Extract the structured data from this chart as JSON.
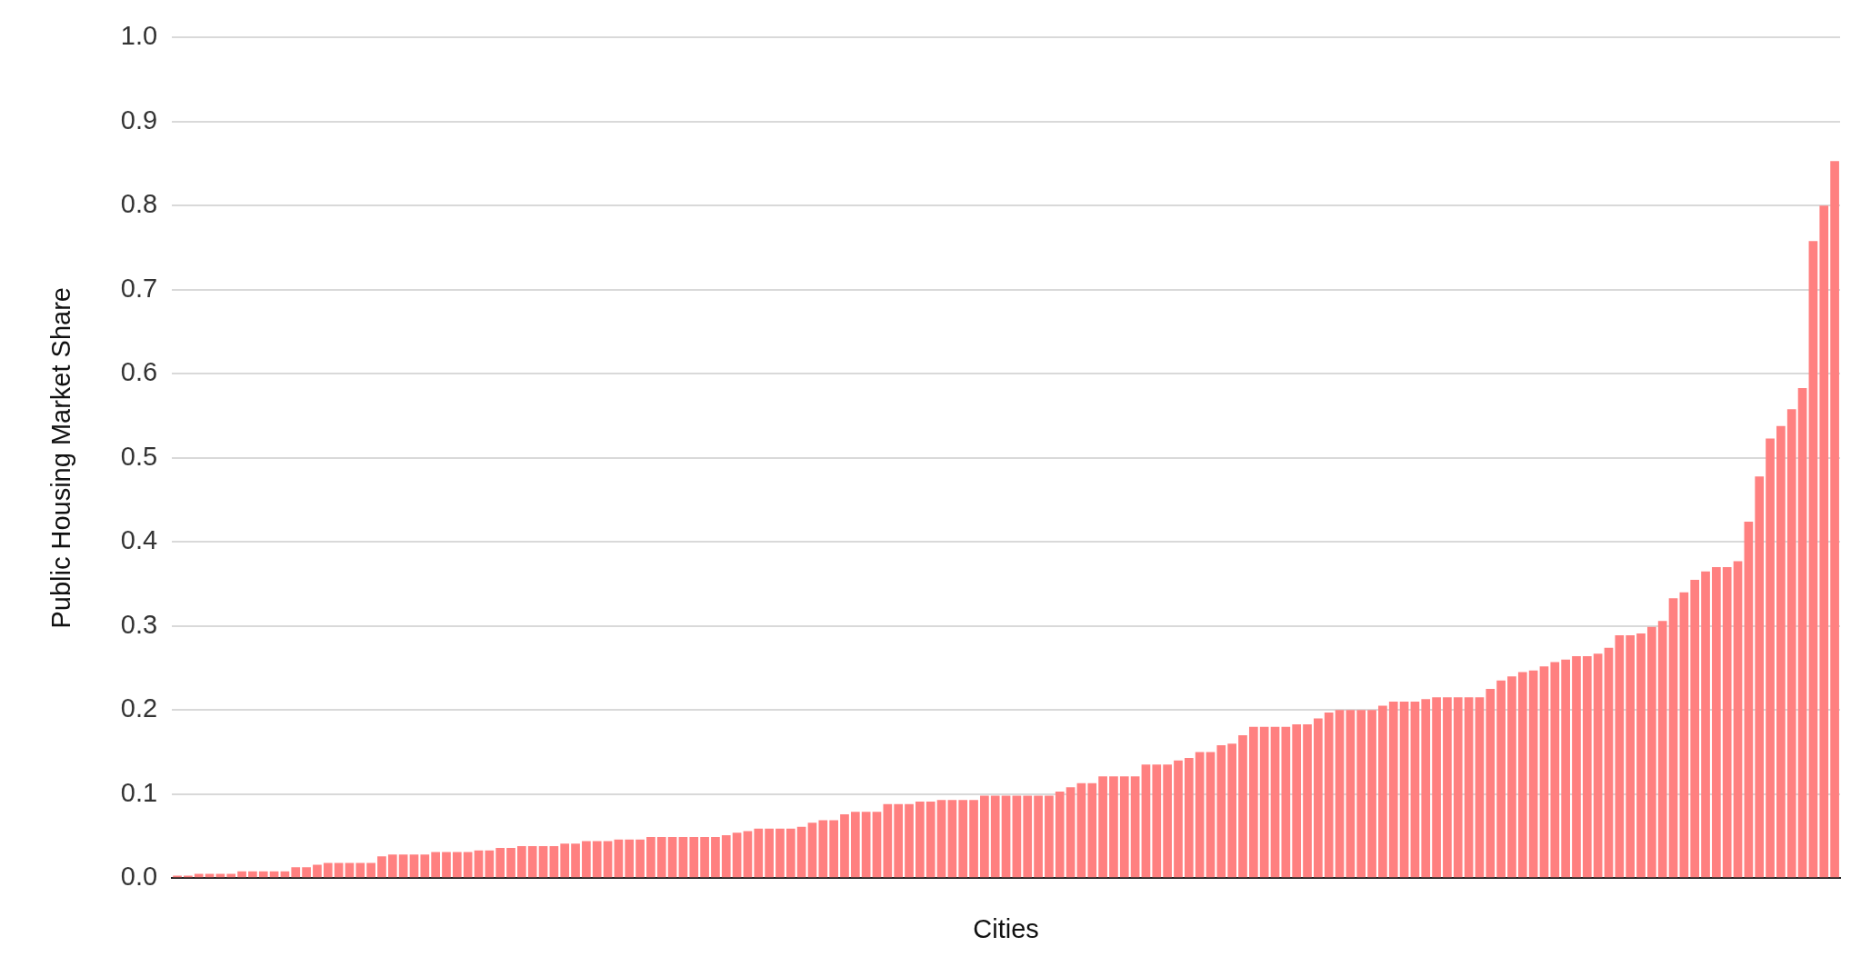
{
  "chart_data": {
    "type": "bar",
    "xlabel": "Cities",
    "ylabel": "Public Housing Market Share",
    "categories": [
      null,
      null,
      null,
      null,
      null,
      null,
      null,
      null,
      null,
      null,
      null,
      null,
      null,
      null,
      null,
      null,
      null,
      null,
      null,
      null,
      null,
      null,
      null,
      null,
      null,
      null,
      null,
      null,
      null,
      null,
      null,
      null,
      null,
      null,
      null,
      null,
      null,
      null,
      null,
      null,
      null,
      null,
      null,
      null,
      null,
      null,
      null,
      null,
      null,
      null,
      null,
      null,
      null,
      null,
      null,
      null,
      null,
      null,
      null,
      null,
      null,
      null,
      null,
      null,
      null,
      null,
      null,
      null,
      null,
      null,
      null,
      null,
      null,
      null,
      null,
      null,
      null,
      null,
      null,
      null,
      null,
      null,
      null,
      null,
      null,
      null,
      null,
      null,
      null,
      null,
      null,
      null,
      null,
      null,
      null,
      null,
      null,
      null,
      null,
      null,
      null,
      null,
      null,
      null,
      null,
      null,
      null,
      null,
      null,
      null,
      null,
      null,
      null,
      null,
      null,
      null,
      null,
      null,
      null,
      null,
      null,
      null,
      null,
      null,
      null,
      null,
      null,
      null,
      null,
      null,
      null,
      null,
      null,
      null,
      null,
      null,
      null,
      null,
      null,
      null,
      null,
      null,
      null,
      null,
      null,
      null,
      null,
      null,
      null,
      null,
      null,
      null,
      null,
      null,
      null
    ],
    "values": [
      0.003,
      0.003,
      0.005,
      0.005,
      0.005,
      0.005,
      0.008,
      0.008,
      0.008,
      0.008,
      0.008,
      0.013,
      0.013,
      0.016,
      0.018,
      0.018,
      0.018,
      0.018,
      0.018,
      0.026,
      0.028,
      0.028,
      0.028,
      0.028,
      0.031,
      0.031,
      0.031,
      0.031,
      0.033,
      0.033,
      0.036,
      0.036,
      0.038,
      0.038,
      0.038,
      0.038,
      0.041,
      0.041,
      0.044,
      0.044,
      0.044,
      0.046,
      0.046,
      0.046,
      0.049,
      0.049,
      0.049,
      0.049,
      0.049,
      0.049,
      0.049,
      0.051,
      0.054,
      0.056,
      0.059,
      0.059,
      0.059,
      0.059,
      0.061,
      0.066,
      0.069,
      0.069,
      0.076,
      0.079,
      0.079,
      0.079,
      0.088,
      0.088,
      0.088,
      0.091,
      0.091,
      0.093,
      0.093,
      0.093,
      0.093,
      0.098,
      0.098,
      0.098,
      0.098,
      0.098,
      0.098,
      0.098,
      0.103,
      0.108,
      0.113,
      0.113,
      0.121,
      0.121,
      0.121,
      0.121,
      0.135,
      0.135,
      0.135,
      0.14,
      0.143,
      0.15,
      0.15,
      0.158,
      0.16,
      0.17,
      0.18,
      0.18,
      0.18,
      0.18,
      0.183,
      0.183,
      0.19,
      0.197,
      0.2,
      0.2,
      0.2,
      0.2,
      0.205,
      0.21,
      0.21,
      0.21,
      0.213,
      0.215,
      0.215,
      0.215,
      0.215,
      0.215,
      0.225,
      0.235,
      0.24,
      0.245,
      0.247,
      0.252,
      0.257,
      0.26,
      0.264,
      0.264,
      0.267,
      0.274,
      0.289,
      0.289,
      0.291,
      0.299,
      0.306,
      0.333,
      0.34,
      0.355,
      0.365,
      0.37,
      0.37,
      0.377,
      0.424,
      0.478,
      0.523,
      0.538,
      0.558,
      0.583,
      0.758,
      0.8,
      0.853
    ],
    "color": "#ff8080",
    "ylim": [
      0,
      1
    ],
    "yticks": [
      {
        "value": 0,
        "label": "0.0"
      },
      0.1,
      0.2,
      0.3,
      0.4,
      0.5,
      0.6,
      0.7,
      0.8,
      0.9,
      {
        "value": 1,
        "label": "1.0"
      }
    ],
    "grid": "y",
    "tick_labels": "y"
  }
}
